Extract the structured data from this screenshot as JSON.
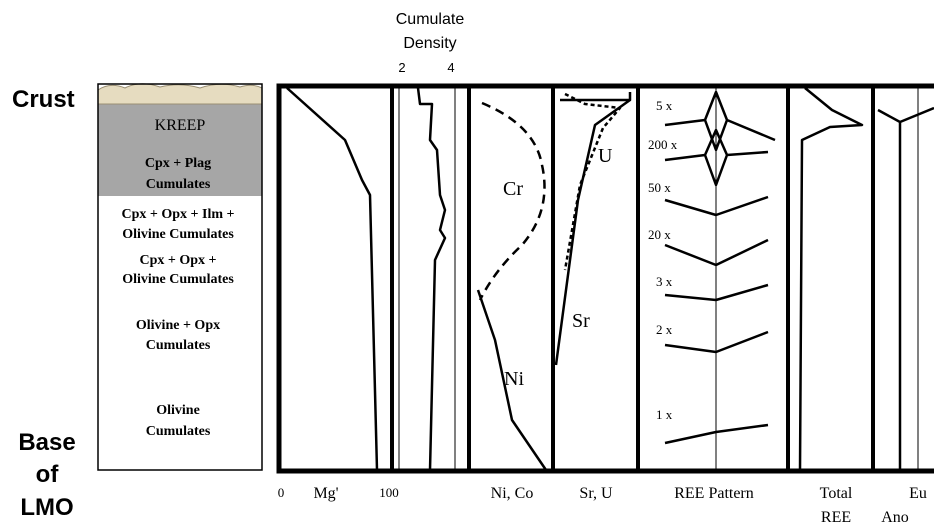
{
  "side_labels": {
    "top": "Crust",
    "bottom": [
      "Base",
      "of",
      "LMO"
    ]
  },
  "layers": [
    {
      "lines": [
        "KREEP"
      ]
    },
    {
      "lines": [
        "Cpx + Plag",
        "Cumulates"
      ]
    },
    {
      "lines": [
        "Cpx + Opx + Ilm +",
        "Olivine Cumulates"
      ]
    },
    {
      "lines": [
        "Cpx + Opx +",
        "Olivine Cumulates"
      ]
    },
    {
      "lines": [
        "Olivine + Opx",
        "Cumulates"
      ]
    },
    {
      "lines": [
        "Olivine",
        "Cumulates"
      ]
    }
  ],
  "density_header": {
    "title": [
      "Cumulate",
      "Density"
    ],
    "ticks": [
      "2",
      "4"
    ]
  },
  "panel_labels": {
    "mg_min": "0",
    "mg": "Mg'",
    "mg_max": "100",
    "ni_co": "Ni, Co",
    "sr_u": "Sr, U",
    "ree_pattern": "REE Pattern",
    "total_ree": [
      "Total",
      "REE"
    ],
    "eu_ano": [
      "Eu",
      "Ano"
    ]
  },
  "curve_labels": {
    "cr": "Cr",
    "ni": "Ni",
    "u": "U",
    "sr": "Sr"
  },
  "ree_multipliers": [
    "5 x",
    "200 x",
    "50 x",
    "20 x",
    "3 x",
    "2 x",
    "1 x"
  ]
}
